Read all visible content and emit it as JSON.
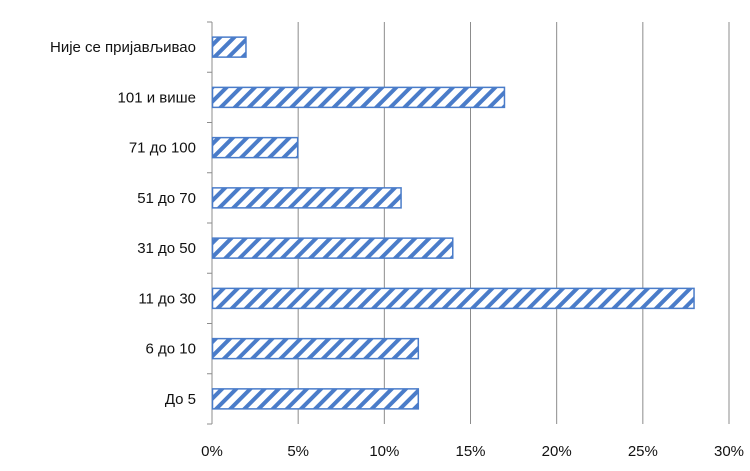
{
  "chart_data": {
    "type": "bar",
    "orientation": "horizontal",
    "categories": [
      "Није се пријављивао",
      "101 и више",
      "71 до 100",
      "51 до 70",
      "31 до 50",
      "11 до 30",
      "6 до 10",
      "До 5"
    ],
    "values": [
      2,
      17,
      5,
      11,
      14,
      28,
      12,
      12
    ],
    "value_unit": "%",
    "xlim": [
      0,
      30
    ],
    "x_ticks": [
      0,
      5,
      10,
      15,
      20,
      25,
      30
    ],
    "x_tick_labels": [
      "0%",
      "5%",
      "10%",
      "15%",
      "20%",
      "25%",
      "30%"
    ],
    "grid": "vertical",
    "legend": "none",
    "title": "",
    "xlabel": "",
    "ylabel": "",
    "colors": {
      "bar_stripe": "#4a7cc9",
      "bar_border": "#4a7cc9",
      "bar_fill": "#ffffff",
      "grid": "#8c8c8c",
      "axis": "#8c8c8c"
    }
  }
}
